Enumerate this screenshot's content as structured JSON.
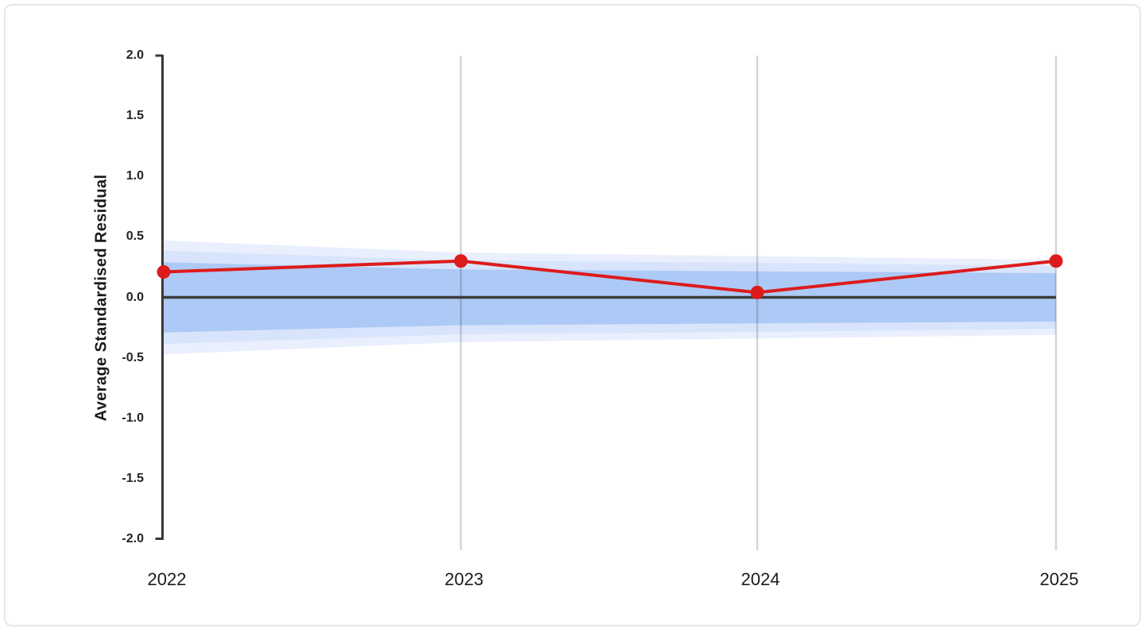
{
  "window": {
    "background": "#ffffff",
    "border_color": "#e7e7e7"
  },
  "chart_data": {
    "type": "line",
    "title": "",
    "xlabel": "",
    "ylabel": "Average Standardised Residual",
    "x_categories": [
      "2022",
      "2023",
      "2024",
      "2025"
    ],
    "ytick_labels": [
      "2.0",
      "1.5",
      "1.0",
      "0.5",
      "0.0",
      "-0.5",
      "-1.0",
      "-1.5",
      "-2.0"
    ],
    "ytick_values": [
      2.0,
      1.5,
      1.0,
      0.5,
      0.0,
      -0.5,
      -1.0,
      -1.5,
      -2.0
    ],
    "ylim": [
      -2.0,
      2.0
    ],
    "grid": "vertical gridlines at 2023, 2024, 2025",
    "legend_position": "none",
    "series": [
      {
        "name": "Average Standardised Residual",
        "style": "line+markers",
        "color": "#dd1b1b",
        "values": [
          0.21,
          0.3,
          0.04,
          0.3
        ]
      }
    ],
    "reference_line": {
      "value": 0.0,
      "color": "#3b3b3b"
    },
    "confidence_bands": [
      {
        "name": "outer-band",
        "color": "#e9effd",
        "upper": [
          0.47,
          0.37,
          0.34,
          0.31
        ],
        "lower": [
          -0.47,
          -0.37,
          -0.34,
          -0.31
        ]
      },
      {
        "name": "middle-band",
        "color": "#d8e4fb",
        "upper": [
          0.385,
          0.305,
          0.285,
          0.26
        ],
        "lower": [
          -0.385,
          -0.305,
          -0.285,
          -0.26
        ]
      },
      {
        "name": "inner-band",
        "color": "#adc9f6",
        "upper": [
          0.29,
          0.23,
          0.215,
          0.2
        ],
        "lower": [
          -0.29,
          -0.23,
          -0.215,
          -0.2
        ]
      }
    ],
    "gridline_color": "#d8d8d8",
    "axis_color": "#383838"
  }
}
